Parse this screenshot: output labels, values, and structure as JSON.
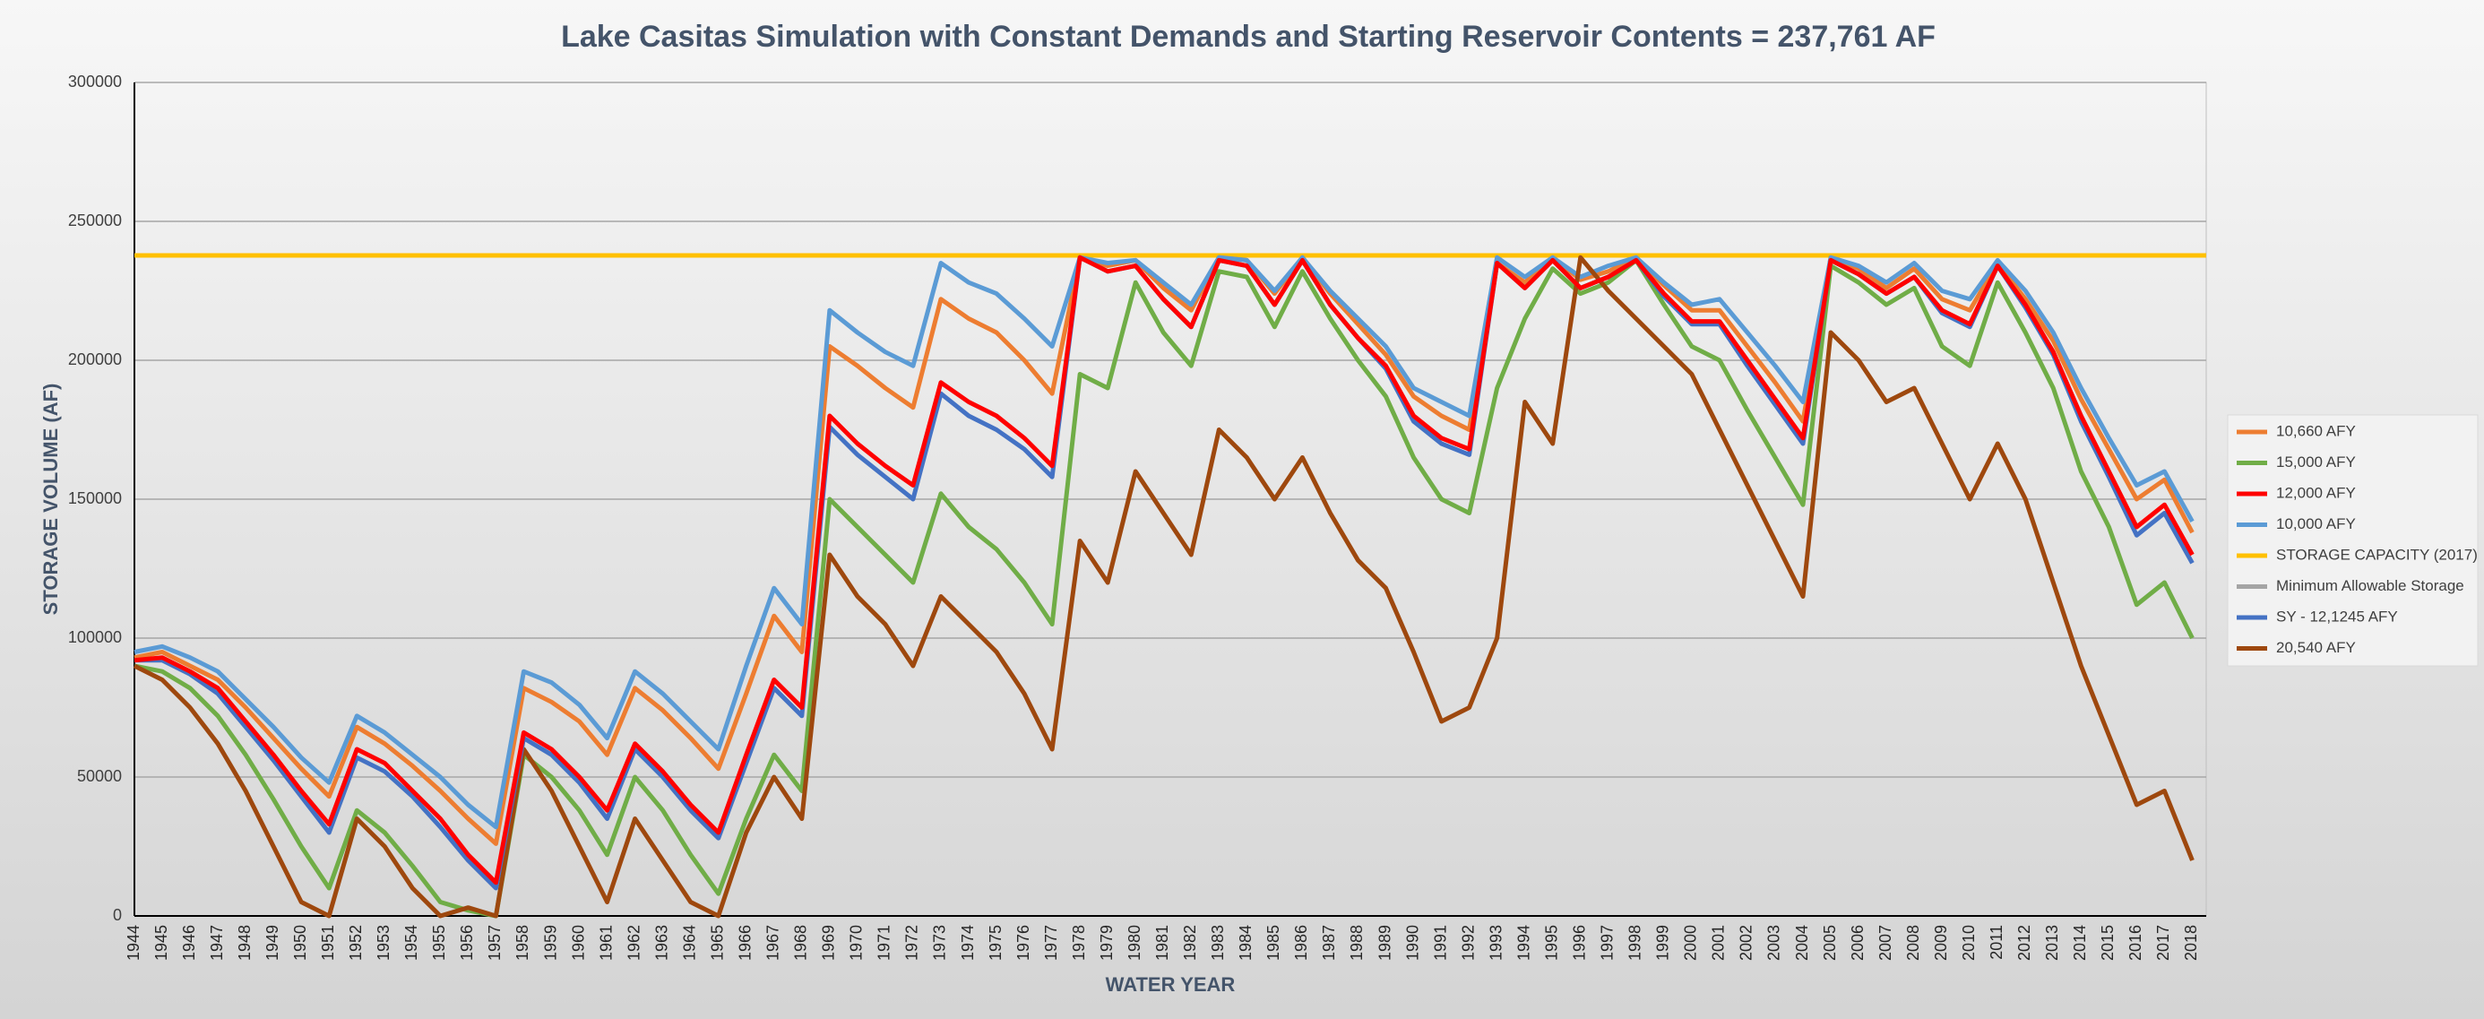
{
  "chart_data": {
    "type": "line",
    "title": "Lake Casitas Simulation with Constant Demands and Starting Reservoir Contents = 237,761 AF",
    "x_label": "WATER YEAR",
    "y_label": "STORAGE VOLUME (AF)",
    "categories": [
      "1944",
      "1945",
      "1946",
      "1947",
      "1948",
      "1949",
      "1950",
      "1951",
      "1952",
      "1953",
      "1954",
      "1955",
      "1956",
      "1957",
      "1958",
      "1959",
      "1960",
      "1961",
      "1962",
      "1963",
      "1964",
      "1965",
      "1966",
      "1967",
      "1968",
      "1969",
      "1970",
      "1971",
      "1972",
      "1973",
      "1974",
      "1975",
      "1976",
      "1977",
      "1978",
      "1979",
      "1980",
      "1981",
      "1982",
      "1983",
      "1984",
      "1985",
      "1986",
      "1987",
      "1988",
      "1989",
      "1990",
      "1991",
      "1992",
      "1993",
      "1994",
      "1995",
      "1996",
      "1997",
      "1998",
      "1999",
      "2000",
      "2001",
      "2002",
      "2003",
      "2004",
      "2005",
      "2006",
      "2007",
      "2008",
      "2009",
      "2010",
      "2011",
      "2012",
      "2013",
      "2014",
      "2015",
      "2016",
      "2017",
      "2018"
    ],
    "ylim": [
      0,
      300000
    ],
    "yticks": [
      0,
      50000,
      100000,
      150000,
      200000,
      250000,
      300000
    ],
    "grid": true,
    "series": [
      {
        "name": "10,660 AFY",
        "color": "#ed7d31",
        "values": [
          93000,
          95000,
          90000,
          85000,
          75000,
          64000,
          53000,
          43000,
          68000,
          62000,
          54000,
          45000,
          35000,
          26000,
          82000,
          77000,
          70000,
          58000,
          82000,
          74000,
          64000,
          53000,
          80000,
          108000,
          95000,
          205000,
          198000,
          190000,
          183000,
          222000,
          215000,
          210000,
          200000,
          188000,
          237000,
          234000,
          236000,
          226000,
          218000,
          237000,
          236000,
          224000,
          237000,
          224000,
          213000,
          202000,
          187000,
          180000,
          175000,
          235000,
          228000,
          237000,
          229000,
          232000,
          237000,
          227000,
          218000,
          218000,
          205000,
          192000,
          178000,
          237000,
          233000,
          226000,
          233000,
          222000,
          218000,
          235000,
          222000,
          207000,
          186000,
          168000,
          150000,
          157000,
          138000
        ]
      },
      {
        "name": "15,000 AFY",
        "color": "#70ad47",
        "values": [
          90000,
          88000,
          82000,
          72000,
          58000,
          42000,
          25000,
          10000,
          38000,
          30000,
          18000,
          5000,
          2000,
          0,
          58000,
          50000,
          38000,
          22000,
          50000,
          38000,
          22000,
          8000,
          35000,
          58000,
          45000,
          150000,
          140000,
          130000,
          120000,
          152000,
          140000,
          132000,
          120000,
          105000,
          195000,
          190000,
          228000,
          210000,
          198000,
          232000,
          230000,
          212000,
          232000,
          215000,
          200000,
          187000,
          165000,
          150000,
          145000,
          190000,
          215000,
          233000,
          224000,
          228000,
          236000,
          220000,
          205000,
          200000,
          182000,
          165000,
          148000,
          234000,
          228000,
          220000,
          226000,
          205000,
          198000,
          228000,
          210000,
          190000,
          160000,
          140000,
          112000,
          120000,
          100000
        ]
      },
      {
        "name": "12,000 AFY",
        "color": "#ff0000",
        "values": [
          92000,
          93000,
          88000,
          82000,
          70000,
          58000,
          45000,
          33000,
          60000,
          55000,
          45000,
          35000,
          22000,
          12000,
          66000,
          60000,
          50000,
          38000,
          62000,
          52000,
          40000,
          30000,
          58000,
          85000,
          75000,
          180000,
          170000,
          162000,
          155000,
          192000,
          185000,
          180000,
          172000,
          162000,
          237000,
          232000,
          234000,
          222000,
          212000,
          236000,
          234000,
          220000,
          236000,
          220000,
          208000,
          198000,
          180000,
          172000,
          168000,
          235000,
          226000,
          236000,
          226000,
          230000,
          236000,
          224000,
          214000,
          214000,
          200000,
          186000,
          172000,
          236000,
          231000,
          224000,
          230000,
          218000,
          213000,
          234000,
          220000,
          203000,
          180000,
          160000,
          140000,
          148000,
          130000
        ]
      },
      {
        "name": "10,000 AFY",
        "color": "#5b9bd5",
        "values": [
          95000,
          97000,
          93000,
          88000,
          78000,
          68000,
          57000,
          48000,
          72000,
          66000,
          58000,
          50000,
          40000,
          32000,
          88000,
          84000,
          76000,
          64000,
          88000,
          80000,
          70000,
          60000,
          90000,
          118000,
          105000,
          218000,
          210000,
          203000,
          198000,
          235000,
          228000,
          224000,
          215000,
          205000,
          237000,
          235000,
          236000,
          228000,
          220000,
          237000,
          236000,
          225000,
          237000,
          225000,
          215000,
          205000,
          190000,
          185000,
          180000,
          237000,
          230000,
          237000,
          230000,
          234000,
          237000,
          228000,
          220000,
          222000,
          210000,
          198000,
          185000,
          237000,
          234000,
          228000,
          235000,
          225000,
          222000,
          236000,
          225000,
          210000,
          190000,
          172000,
          155000,
          160000,
          142000
        ]
      },
      {
        "name": "STORAGE CAPACITY (2017)",
        "color": "#ffc000",
        "value": 237761
      },
      {
        "name": "Minimum Allowable Storage",
        "color": "#a5a5a5",
        "value": null
      },
      {
        "name": "SY - 12,1245 AFY",
        "color": "#4472c4",
        "values": [
          92000,
          92000,
          87000,
          80000,
          68000,
          56000,
          43000,
          30000,
          57000,
          52000,
          43000,
          32000,
          20000,
          10000,
          64000,
          58000,
          48000,
          35000,
          60000,
          50000,
          38000,
          28000,
          55000,
          82000,
          72000,
          176000,
          166000,
          158000,
          150000,
          188000,
          180000,
          175000,
          168000,
          158000,
          237000,
          232000,
          234000,
          222000,
          212000,
          236000,
          234000,
          220000,
          236000,
          220000,
          208000,
          197000,
          178000,
          170000,
          166000,
          235000,
          226000,
          236000,
          226000,
          230000,
          236000,
          223000,
          213000,
          213000,
          198000,
          184000,
          170000,
          236000,
          231000,
          224000,
          230000,
          217000,
          212000,
          234000,
          219000,
          202000,
          178000,
          158000,
          137000,
          145000,
          127000
        ]
      },
      {
        "name": "20,540 AFY",
        "color": "#9e480e",
        "values": [
          90000,
          85000,
          75000,
          62000,
          45000,
          25000,
          5000,
          0,
          35000,
          25000,
          10000,
          0,
          3000,
          0,
          60000,
          45000,
          25000,
          5000,
          35000,
          20000,
          5000,
          0,
          30000,
          50000,
          35000,
          130000,
          115000,
          105000,
          90000,
          115000,
          105000,
          95000,
          80000,
          60000,
          135000,
          120000,
          160000,
          145000,
          130000,
          175000,
          165000,
          150000,
          165000,
          145000,
          128000,
          118000,
          95000,
          70000,
          75000,
          100000,
          185000,
          170000,
          237000,
          225000,
          215000,
          205000,
          195000,
          175000,
          155000,
          135000,
          115000,
          210000,
          200000,
          185000,
          190000,
          170000,
          150000,
          170000,
          150000,
          120000,
          90000,
          65000,
          40000,
          45000,
          20000
        ]
      }
    ]
  }
}
